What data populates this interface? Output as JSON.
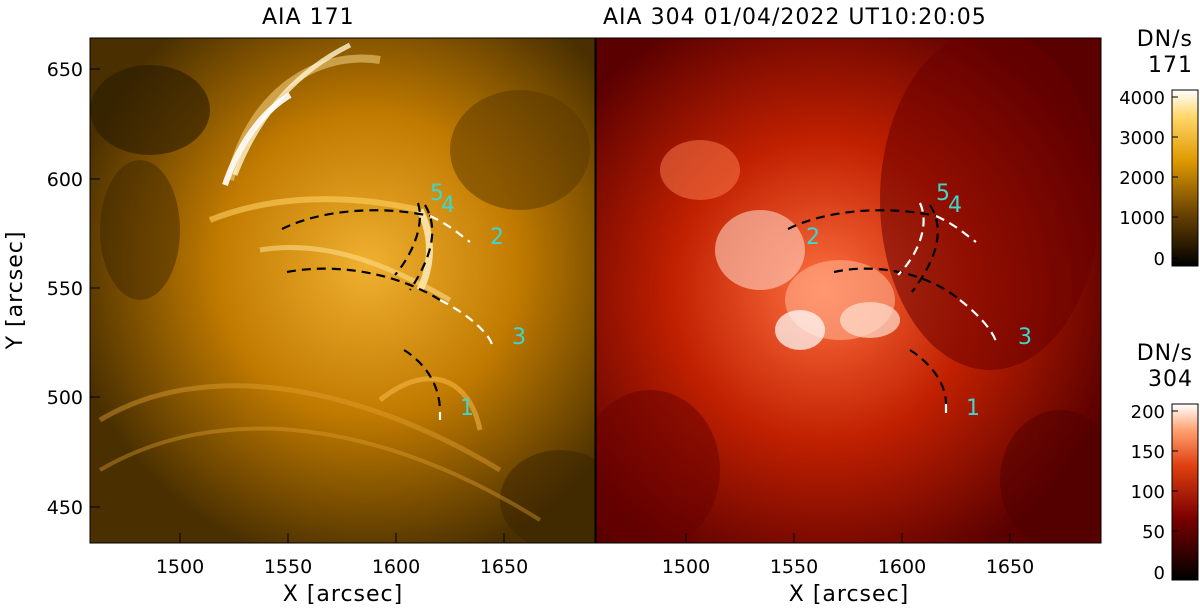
{
  "panels": [
    {
      "title": "AIA  171"
    },
    {
      "title": "AIA  304   01/04/2022  UT10:20:05"
    }
  ],
  "x_axis": {
    "label": "X [arcsec]",
    "ticks": [
      "1500",
      "1550",
      "1600",
      "1650"
    ]
  },
  "y_axis": {
    "label": "Y [arcsec]",
    "ticks": [
      "450",
      "500",
      "550",
      "600",
      "650"
    ]
  },
  "colorbar_171": {
    "unit": "DN/s",
    "channel": "171",
    "ticks": [
      "0",
      "1000",
      "2000",
      "3000",
      "4000"
    ]
  },
  "colorbar_304": {
    "unit": "DN/s",
    "channel": "304",
    "ticks": [
      "0",
      "50",
      "100",
      "150",
      "200"
    ]
  },
  "loop_labels_171": [
    "1",
    "2",
    "3",
    "4",
    "5"
  ],
  "loop_labels_304": [
    "1",
    "2",
    "3",
    "4",
    "5"
  ],
  "colors": {
    "aia171_bright": "#fff0c0",
    "aia171_dark": "#1a1000",
    "aia304_bright": "#ffffff",
    "aia304_dark": "#120000",
    "label": "#3fd6d0"
  }
}
